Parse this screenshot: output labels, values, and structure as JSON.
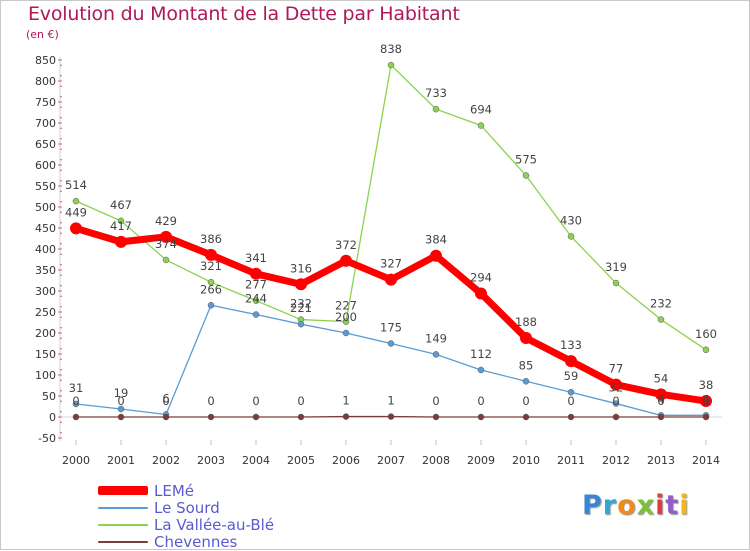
{
  "header": {
    "title": "Evolution du Montant de la Dette par Habitant",
    "unit": "(en €)"
  },
  "brand": {
    "text": "Proxiti",
    "colors": [
      "#3a86d6",
      "#2fa8d8",
      "#f08a1c",
      "#7cc13a",
      "#e23c3c",
      "#8e5fc4",
      "#f2b616"
    ]
  },
  "chart_data": {
    "type": "line",
    "title": "Evolution du Montant de la Dette par Habitant",
    "ylabel": "(en €)",
    "xlabel": "",
    "ylim": [
      -50,
      850
    ],
    "yticks": [
      -50,
      0,
      50,
      100,
      150,
      200,
      250,
      300,
      350,
      400,
      450,
      500,
      550,
      600,
      650,
      700,
      750,
      800,
      850
    ],
    "grid": false,
    "legend_position": "bottom-left",
    "x": [
      "2000",
      "2001",
      "2002",
      "2003",
      "2004",
      "2005",
      "2006",
      "2007",
      "2008",
      "2009",
      "2010",
      "2011",
      "2012",
      "2013",
      "2014"
    ],
    "series": [
      {
        "name": "LEMé",
        "color": "#ff0000",
        "values": [
          449,
          417,
          429,
          386,
          341,
          316,
          372,
          327,
          384,
          294,
          188,
          133,
          77,
          54,
          38
        ]
      },
      {
        "name": "Le Sourd",
        "color": "#5b9bd5",
        "values": [
          31,
          19,
          6,
          266,
          244,
          221,
          200,
          175,
          149,
          112,
          85,
          59,
          32,
          4,
          4
        ]
      },
      {
        "name": "La Vallée-au-Blé",
        "color": "#8cd250",
        "values": [
          514,
          467,
          374,
          321,
          277,
          232,
          227,
          838,
          733,
          694,
          575,
          430,
          319,
          232,
          160
        ]
      },
      {
        "name": "Chevennes",
        "color": "#7a3c3c",
        "values": [
          0,
          0,
          0,
          0,
          0,
          0,
          1,
          1,
          0,
          0,
          0,
          0,
          0,
          0,
          0
        ]
      }
    ]
  }
}
